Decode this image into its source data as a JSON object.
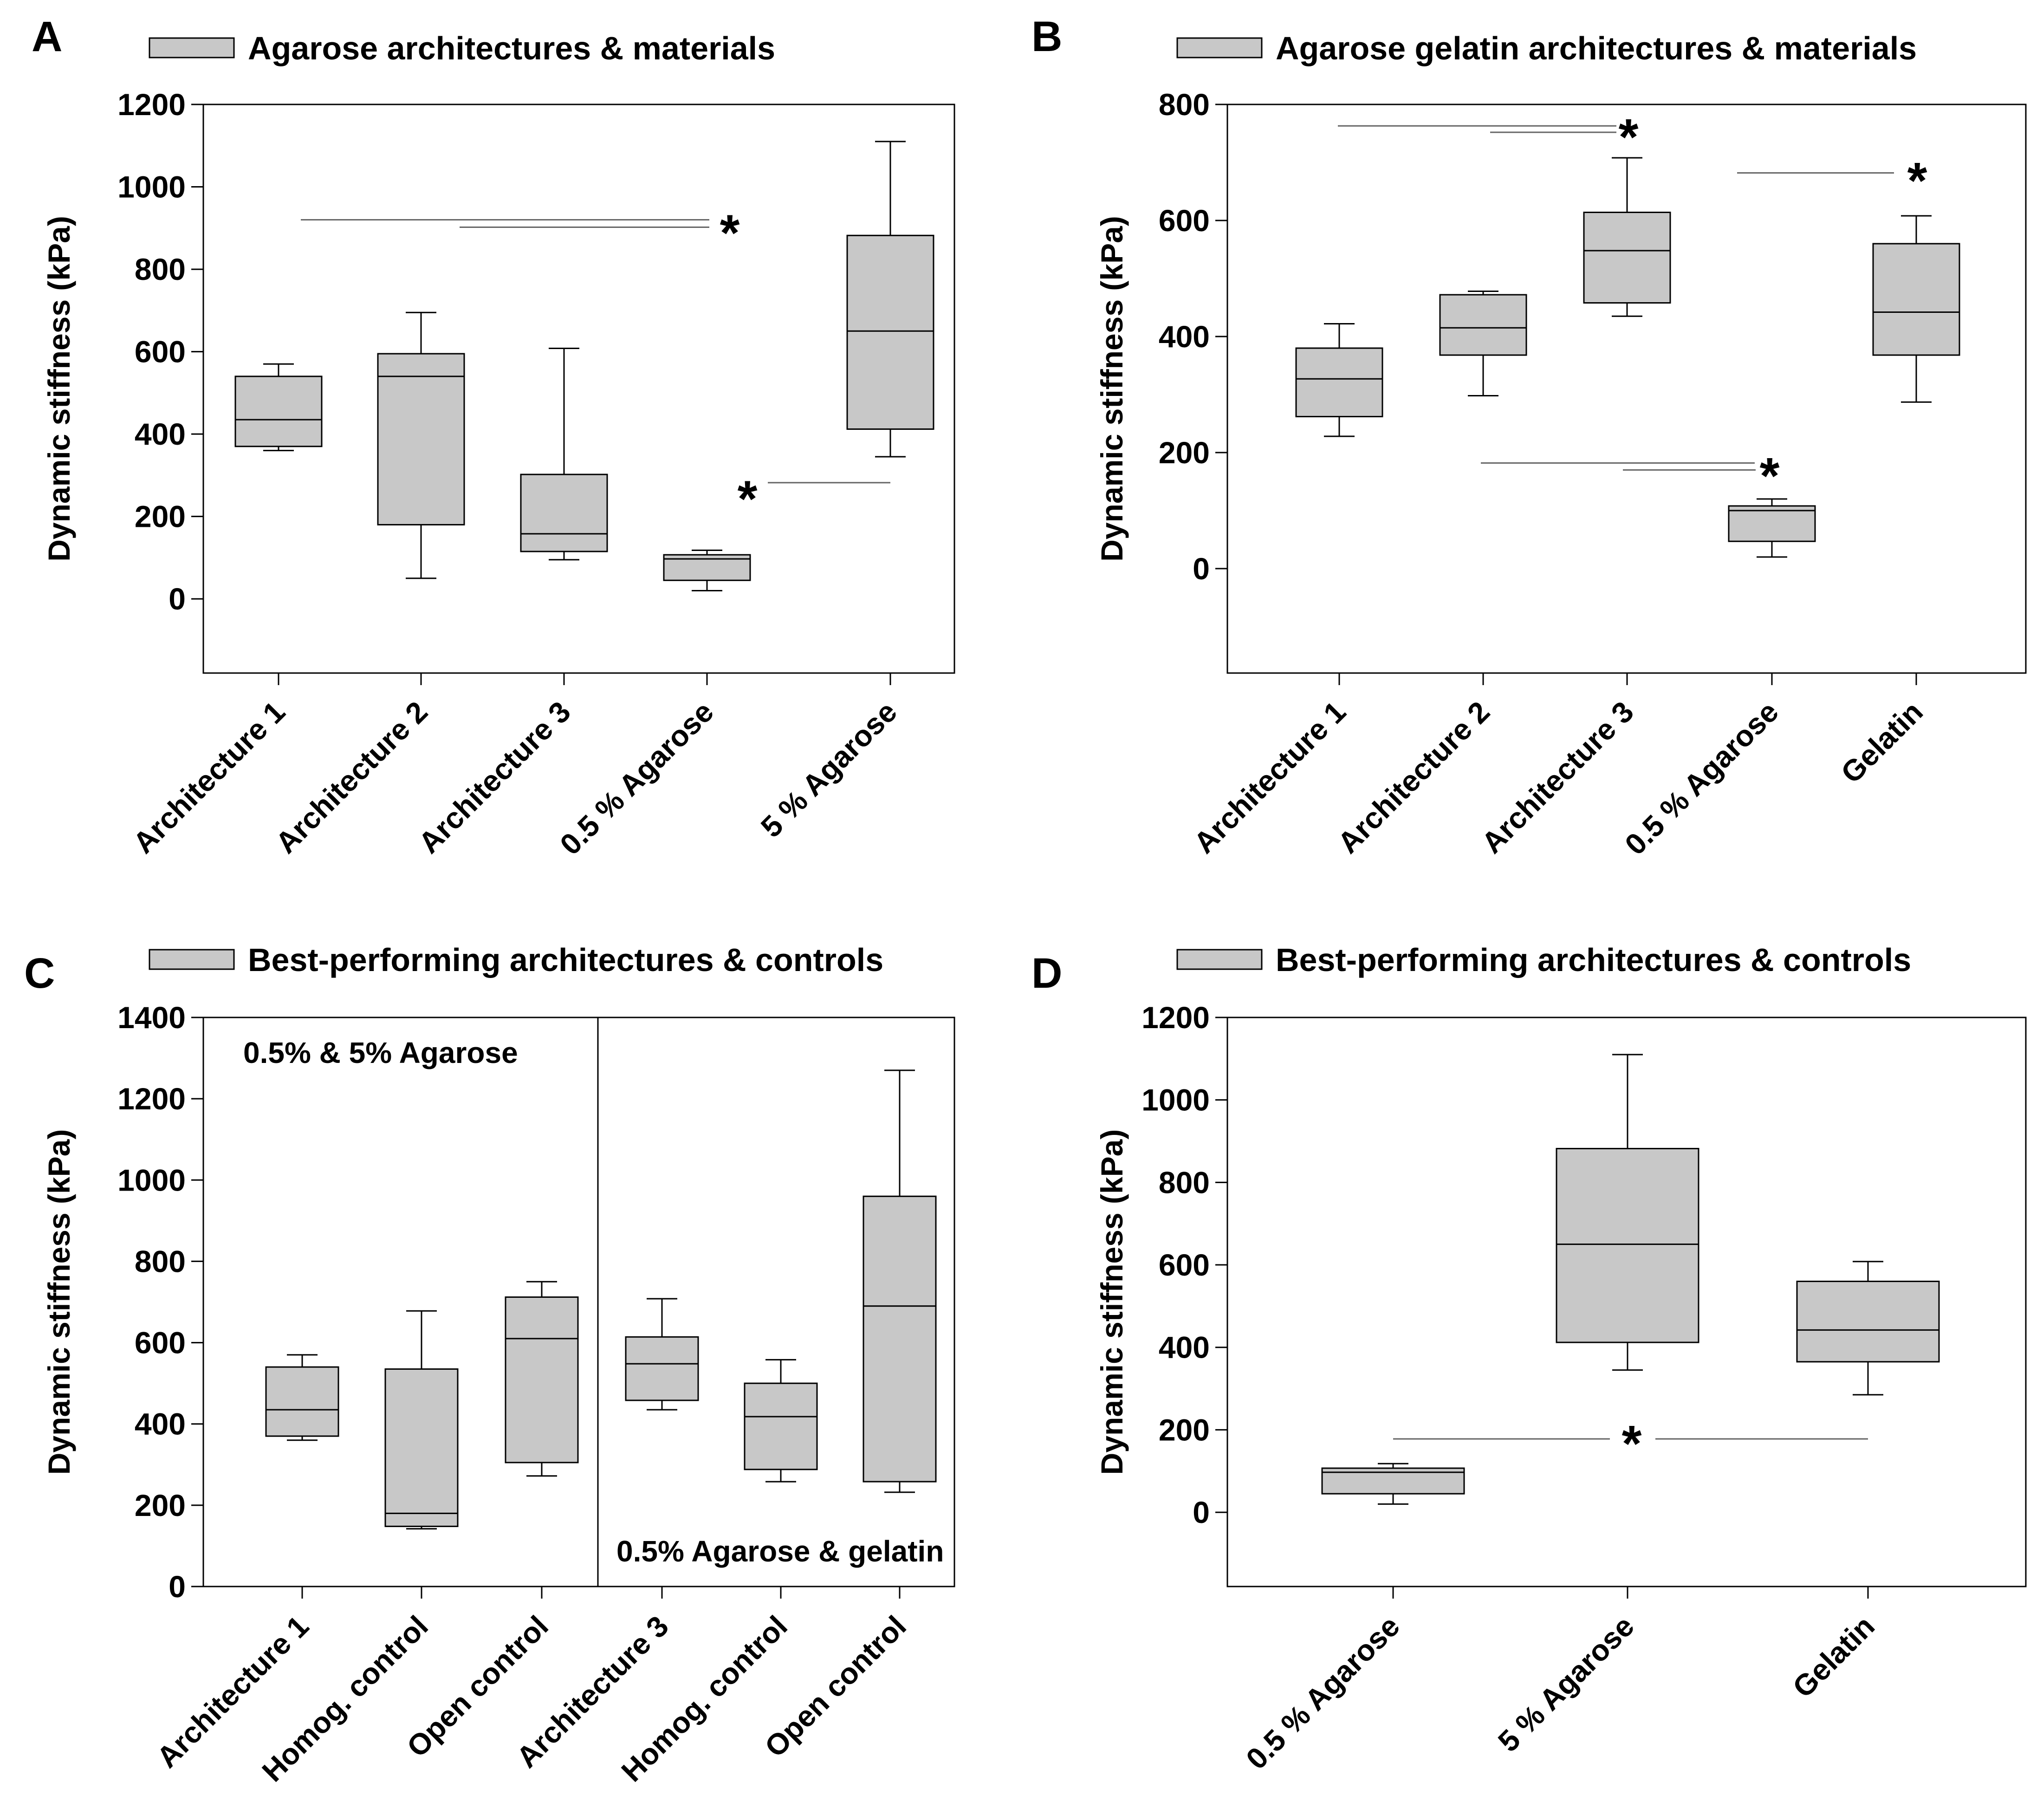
{
  "figure": {
    "box_color": "#c8c8c8",
    "line_color": "#000000",
    "sig_line_color": "#666666"
  },
  "chart_data": [
    {
      "panel": "A",
      "type": "box",
      "legend": "Agarose architectures & materials",
      "ylabel": "Dynamic stiffness (kPa)",
      "ylim": [
        -180,
        1200
      ],
      "yticks": [
        0,
        200,
        400,
        600,
        800,
        1000,
        1200
      ],
      "categories": [
        "Architecture 1",
        "Architecture 2",
        "Architecture 3",
        "0.5 % Agarose",
        "5 % Agarose"
      ],
      "boxes": [
        {
          "min": 360,
          "q1": 370,
          "median": 435,
          "q3": 540,
          "max": 570
        },
        {
          "min": 50,
          "q1": 180,
          "median": 540,
          "q3": 595,
          "max": 695
        },
        {
          "min": 95,
          "q1": 115,
          "median": 158,
          "q3": 302,
          "max": 608
        },
        {
          "min": 20,
          "q1": 45,
          "median": 97,
          "q3": 107,
          "max": 118
        },
        {
          "min": 345,
          "q1": 412,
          "median": 650,
          "q3": 882,
          "max": 1110
        }
      ],
      "significance": [
        {
          "from": 0,
          "to": 3,
          "y": 920
        },
        {
          "from": 1,
          "to": 3,
          "y": 902
        },
        {
          "from": 3,
          "to": 4,
          "y": 282
        }
      ],
      "star_label": "*",
      "annotations": []
    },
    {
      "panel": "B",
      "type": "box",
      "legend": "Agarose gelatin architectures & materials",
      "ylabel": "Dynamic stiffness (kPa)",
      "ylim": [
        -180,
        800
      ],
      "yticks": [
        0,
        200,
        400,
        600,
        800
      ],
      "categories": [
        "Architecture 1",
        "Architecture 2",
        "Architecture 3",
        "0.5 % Agarose",
        "Gelatin"
      ],
      "boxes": [
        {
          "min": 228,
          "q1": 262,
          "median": 327,
          "q3": 380,
          "max": 422
        },
        {
          "min": 298,
          "q1": 368,
          "median": 415,
          "q3": 472,
          "max": 478
        },
        {
          "min": 435,
          "q1": 458,
          "median": 548,
          "q3": 614,
          "max": 708
        },
        {
          "min": 20,
          "q1": 47,
          "median": 100,
          "q3": 108,
          "max": 120
        },
        {
          "min": 287,
          "q1": 368,
          "median": 442,
          "q3": 560,
          "max": 608
        }
      ],
      "significance": [
        {
          "from": 0,
          "to": 2,
          "y": 763
        },
        {
          "from": 1,
          "to": 2,
          "y": 752
        },
        {
          "from": 3,
          "to": 4,
          "y": 682
        },
        {
          "from": 1,
          "to": 3,
          "y": 182
        },
        {
          "from": 2,
          "to": 3,
          "y": 170
        }
      ],
      "star_label": "*",
      "annotations": []
    },
    {
      "panel": "C",
      "type": "box",
      "legend": "Best-performing architectures & controls",
      "ylabel": "Dynamic stiffness (kPa)",
      "ylim": [
        0,
        1400
      ],
      "yticks": [
        0,
        200,
        400,
        600,
        800,
        1000,
        1200,
        1400
      ],
      "categories": [
        "Architecture 1",
        "Homog. control",
        "Open control",
        "Architecture 3",
        "Homog. control",
        "Open control"
      ],
      "boxes": [
        {
          "min": 360,
          "q1": 370,
          "median": 435,
          "q3": 540,
          "max": 570
        },
        {
          "min": 142,
          "q1": 148,
          "median": 180,
          "q3": 535,
          "max": 678
        },
        {
          "min": 272,
          "q1": 305,
          "median": 610,
          "q3": 712,
          "max": 750
        },
        {
          "min": 435,
          "q1": 458,
          "median": 548,
          "q3": 614,
          "max": 708
        },
        {
          "min": 258,
          "q1": 288,
          "median": 418,
          "q3": 500,
          "max": 558
        },
        {
          "min": 232,
          "q1": 258,
          "median": 690,
          "q3": 960,
          "max": 1270
        }
      ],
      "significance": [],
      "star_label": "",
      "annotations": [
        "0.5% & 5% Agarose",
        "0.5% Agarose & gelatin"
      ]
    },
    {
      "panel": "D",
      "type": "box",
      "legend": "Best-performing architectures & controls",
      "ylabel": "Dynamic stiffness (kPa)",
      "ylim": [
        -180,
        1200
      ],
      "yticks": [
        0,
        200,
        400,
        600,
        800,
        1000,
        1200
      ],
      "categories": [
        "0.5 % Agarose",
        "5 % Agarose",
        "Gelatin"
      ],
      "boxes": [
        {
          "min": 20,
          "q1": 45,
          "median": 97,
          "q3": 107,
          "max": 118
        },
        {
          "min": 345,
          "q1": 412,
          "median": 650,
          "q3": 882,
          "max": 1110
        },
        {
          "min": 285,
          "q1": 365,
          "median": 442,
          "q3": 560,
          "max": 608
        }
      ],
      "significance": [
        {
          "from": 0,
          "to": 2,
          "y": 178
        }
      ],
      "star_label": "*",
      "annotations": []
    }
  ]
}
